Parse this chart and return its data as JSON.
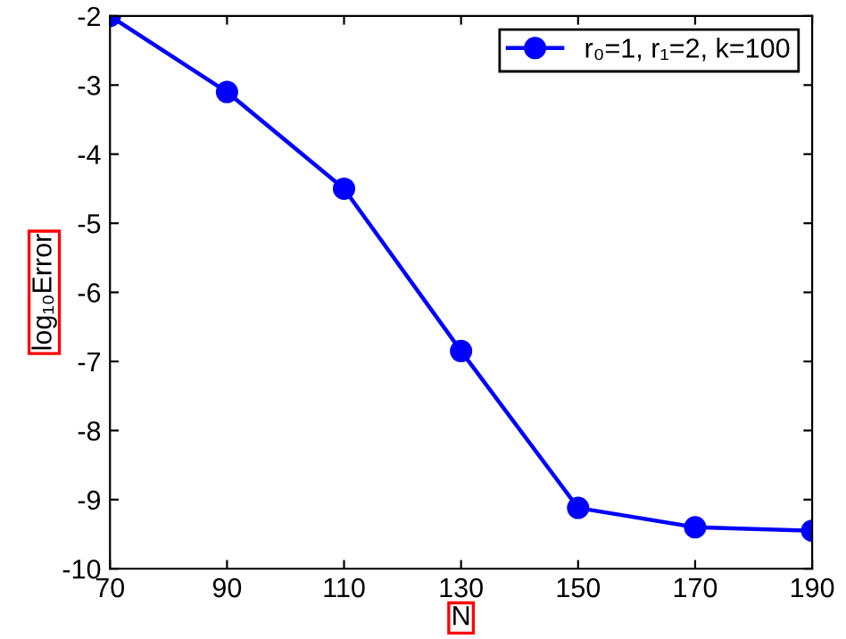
{
  "chart_data": {
    "type": "line",
    "xlabel": "N",
    "ylabel": "log₁₀Error",
    "x": [
      70,
      90,
      110,
      130,
      150,
      170,
      190
    ],
    "series": [
      {
        "name": "r₀=1, r₁=2, k=100",
        "color": "#0000ff",
        "values": [
          -2,
          -3.1,
          -4.5,
          -6.85,
          -9.12,
          -9.4,
          -9.45
        ]
      }
    ],
    "xlim": [
      70,
      190
    ],
    "xticks": [
      70,
      90,
      110,
      130,
      150,
      170,
      190
    ],
    "ylim": [
      -10,
      -2
    ],
    "yticks": [
      -10,
      -9,
      -8,
      -7,
      -6,
      -5,
      -4,
      -3,
      -2
    ],
    "grid": false,
    "legend": "top right",
    "marker": "circle",
    "line_style": "solid"
  }
}
